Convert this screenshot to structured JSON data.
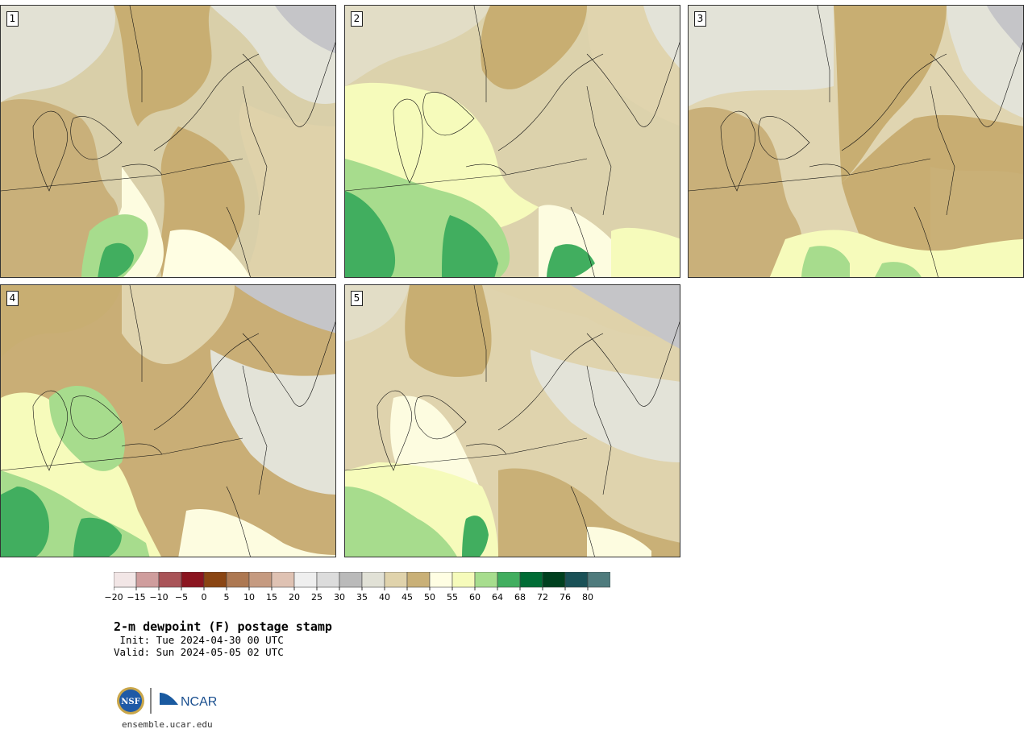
{
  "title": "2-m dewpoint (F) postage stamp",
  "init_line": " Init: Tue 2024-04-30 00 UTC",
  "valid_line": "Valid: Sun 2024-05-05 02 UTC",
  "logo_text": "ensemble.ucar.edu",
  "logo_nsf": "NSF",
  "logo_ncar": "NCAR",
  "panels": [
    {
      "label": "1",
      "fill_colors": [
        "#cbb37a",
        "#e0d5b3",
        "#e3e3d8"
      ],
      "moist_colors": [
        "#fffee3",
        "#f6fbbb",
        "#a7dd8e",
        "#41ae5f"
      ]
    },
    {
      "label": "2",
      "fill_colors": [
        "#cbb37a",
        "#e0d5b3",
        "#e3e3d8"
      ],
      "moist_colors": [
        "#fffee3",
        "#f6fbbb",
        "#a7dd8e",
        "#41ae5f"
      ]
    },
    {
      "label": "3",
      "fill_colors": [
        "#cbb37a",
        "#e0d5b3",
        "#e3e3d8"
      ],
      "moist_colors": [
        "#fffee3",
        "#f6fbbb",
        "#a7dd8e"
      ]
    },
    {
      "label": "4",
      "fill_colors": [
        "#cbb37a",
        "#e0d5b3",
        "#e3e3d8"
      ],
      "moist_colors": [
        "#fffee3",
        "#f6fbbb",
        "#a7dd8e",
        "#41ae5f"
      ]
    },
    {
      "label": "5",
      "fill_colors": [
        "#cbb37a",
        "#e0d5b3",
        "#e3e3d8"
      ],
      "moist_colors": [
        "#fffee3",
        "#f6fbbb",
        "#a7dd8e",
        "#41ae5f"
      ]
    }
  ],
  "colorbar": {
    "colors": [
      "#f2e6e6",
      "#cf9d9d",
      "#a95458",
      "#8b1520",
      "#8a4513",
      "#ad7852",
      "#c59a80",
      "#dfc2b3",
      "#efefef",
      "#dcdcdc",
      "#bababa",
      "#e1e1d6",
      "#e0d3ac",
      "#c9b077",
      "#fffee3",
      "#f6fbbb",
      "#a7dd8e",
      "#41ae5f",
      "#006c35",
      "#00401f",
      "#1a5157",
      "#4f7b7d"
    ],
    "ticks": [
      "−20",
      "−15",
      "−10",
      "−5",
      "0",
      "5",
      "10",
      "15",
      "20",
      "25",
      "30",
      "35",
      "40",
      "45",
      "50",
      "55",
      "60",
      "64",
      "68",
      "72",
      "76",
      "80"
    ]
  }
}
